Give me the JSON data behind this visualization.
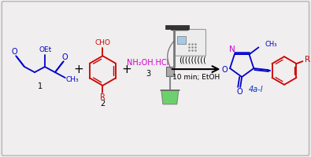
{
  "background_color": "#f0eeee",
  "border_color": "#bbbbbb",
  "c1": "#0000cc",
  "c2": "#cc0000",
  "c3": "#cc00cc",
  "cb": "#0000cc",
  "cr": "#cc0000",
  "cn": "#cc00cc",
  "label1": "1",
  "label2": "2",
  "label3": "3",
  "label4": "4a-l",
  "condition1": "(((((((((",
  "condition2": "10 min; EtOH",
  "reagent": "NH₂OH.HCl"
}
